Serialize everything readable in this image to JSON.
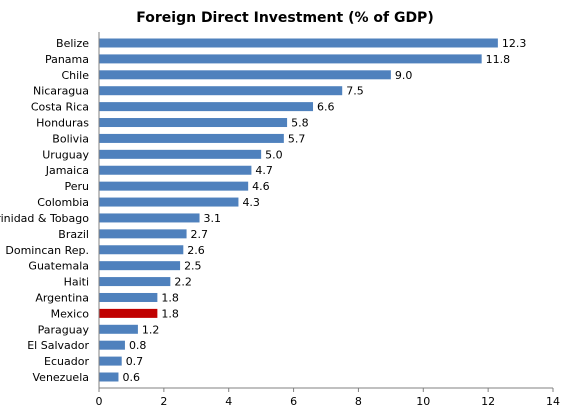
{
  "chart_data": {
    "type": "bar",
    "orientation": "horizontal",
    "title": "Foreign Direct Investment (% of GDP)",
    "xlabel": "",
    "ylabel": "",
    "xlim": [
      0,
      14
    ],
    "xticks": [
      0,
      2,
      4,
      6,
      8,
      10,
      12,
      14
    ],
    "grid": false,
    "legend": "none",
    "categories": [
      "Belize",
      "Panama",
      "Chile",
      "Nicaragua",
      "Costa Rica",
      "Honduras",
      "Bolivia",
      "Uruguay",
      "Jamaica",
      "Peru",
      "Colombia",
      "Trinidad & Tobago",
      "Brazil",
      "Domincan Rep.",
      "Guatemala",
      "Haiti",
      "Argentina",
      "Mexico",
      "Paraguay",
      "El Salvador",
      "Ecuador",
      "Venezuela"
    ],
    "values": [
      12.3,
      11.8,
      9.0,
      7.5,
      6.6,
      5.8,
      5.7,
      5.0,
      4.7,
      4.6,
      4.3,
      3.1,
      2.7,
      2.6,
      2.5,
      2.2,
      1.8,
      1.8,
      1.2,
      0.8,
      0.7,
      0.6
    ],
    "value_labels": [
      "12.3",
      "11.8",
      "9.0",
      "7.5",
      "6.6",
      "5.8",
      "5.7",
      "5.0",
      "4.7",
      "4.6",
      "4.3",
      "3.1",
      "2.7",
      "2.6",
      "2.5",
      "2.2",
      "1.8",
      "1.8",
      "1.2",
      "0.8",
      "0.7",
      "0.6"
    ],
    "highlight": "Mexico",
    "colors": {
      "bar": "#4f81bd",
      "highlight": "#c00000",
      "axis": "#808080"
    }
  }
}
